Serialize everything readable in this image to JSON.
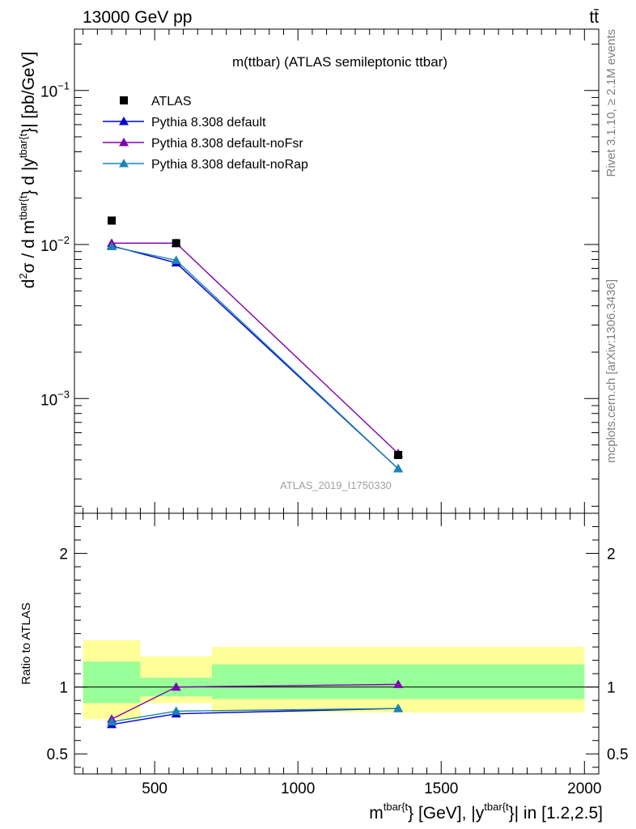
{
  "header": {
    "left": "13000 GeV pp",
    "right": "tt̄"
  },
  "side_labels": {
    "rivet": "Rivet 3.1.10, ≥ 2.1M events",
    "mcplots": "mcplots.cern.ch [arXiv:1306.3436]"
  },
  "chart_data": [
    {
      "type": "line",
      "title": "m(ttbar) (ATLAS semileptonic ttbar)",
      "watermark": "ATLAS_2019_I1750330",
      "ylabel": {
        "part1": "d",
        "part1_sup": "2",
        "part2": "σ /  d m",
        "part2_sup": "tbar{t",
        "part3": "} d |y",
        "part3_sup": "tbar{t",
        "part4": "}| [pb/GeV]"
      },
      "yscale": "log",
      "xlim": [
        220,
        2050
      ],
      "ylim": [
        0.00018,
        0.25
      ],
      "yticks": [
        {
          "value": 0.1,
          "base": "10",
          "exp": "−1"
        },
        {
          "value": 0.01,
          "base": "10",
          "exp": "−2"
        },
        {
          "value": 0.001,
          "base": "10",
          "exp": "−3"
        }
      ],
      "legend_position": "top-left",
      "data": {
        "name": "ATLAS",
        "color": "#000000",
        "x": [
          350,
          575,
          1350
        ],
        "y": [
          0.0143,
          0.0102,
          0.00043
        ]
      },
      "series": [
        {
          "name": "Pythia 8.308 default",
          "color": "#0000cc",
          "x": [
            350,
            575,
            1350
          ],
          "y": [
            0.0098,
            0.0076,
            0.00035
          ]
        },
        {
          "name": "Pythia 8.308 default-noFsr",
          "color": "#7f00b2",
          "x": [
            350,
            575,
            1350
          ],
          "y": [
            0.0102,
            0.0102,
            0.00044
          ]
        },
        {
          "name": "Pythia 8.308 default-noRap",
          "color": "#1a85b5",
          "x": [
            350,
            575,
            1350
          ],
          "y": [
            0.0097,
            0.0079,
            0.00035
          ]
        }
      ]
    },
    {
      "type": "line",
      "ylabel": "Ratio to ATLAS",
      "xlim": [
        220,
        2050
      ],
      "ylim": [
        0.35,
        2.3
      ],
      "yticks": [
        {
          "value": 0.5,
          "label": "0.5"
        },
        {
          "value": 1,
          "label": "1"
        },
        {
          "value": 2,
          "label": "2"
        }
      ],
      "xticks": [
        {
          "value": 500,
          "label": "500"
        },
        {
          "value": 1000,
          "label": "1000"
        },
        {
          "value": 1500,
          "label": "1500"
        },
        {
          "value": 2000,
          "label": "2000"
        }
      ],
      "xlabel": {
        "part1": "m",
        "part1_sup": "tbar{t",
        "part2": "} [GeV], |y",
        "part2_sup": "tbar{t",
        "part3": "}| in [1.2,2.5]"
      },
      "reference": 1,
      "bands": [
        {
          "x": [
            250,
            450
          ],
          "inner": [
            0.88,
            1.19
          ],
          "outer": [
            0.76,
            1.35
          ],
          "inner_color": "#99ff99",
          "outer_color": "#ffff99"
        },
        {
          "x": [
            450,
            700
          ],
          "inner": [
            0.93,
            1.07
          ],
          "outer": [
            0.88,
            1.23
          ],
          "inner_color": "#99ff99",
          "outer_color": "#ffff99"
        },
        {
          "x": [
            700,
            2000
          ],
          "inner": [
            0.91,
            1.17
          ],
          "outer": [
            0.81,
            1.3
          ],
          "inner_color": "#99ff99",
          "outer_color": "#ffff99"
        }
      ],
      "series": [
        {
          "name": "Pythia 8.308 default",
          "color": "#0000cc",
          "x": [
            350,
            575,
            1350
          ],
          "y": [
            0.72,
            0.8,
            0.84
          ]
        },
        {
          "name": "Pythia 8.308 default-noFsr",
          "color": "#7f00b2",
          "x": [
            350,
            575,
            1350
          ],
          "y": [
            0.76,
            1.0,
            1.02
          ]
        },
        {
          "name": "Pythia 8.308 default-noRap",
          "color": "#1a85b5",
          "x": [
            350,
            575,
            1350
          ],
          "y": [
            0.74,
            0.82,
            0.84
          ]
        }
      ]
    }
  ]
}
